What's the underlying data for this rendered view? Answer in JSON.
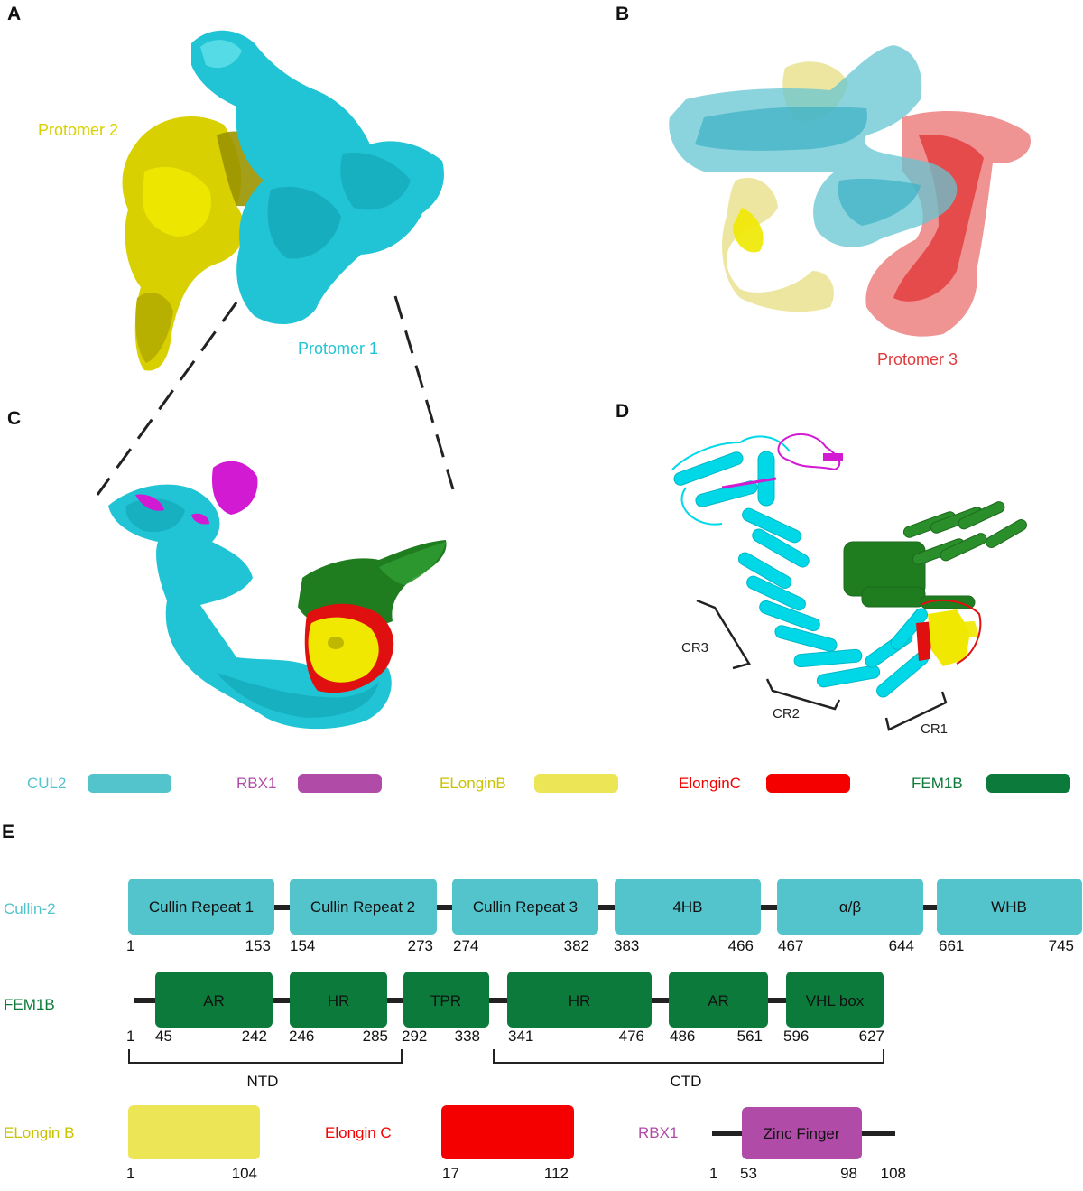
{
  "panels": {
    "a": {
      "letter": "A",
      "label_protomer2": "Protomer 2",
      "label_protomer1": "Protomer 1"
    },
    "b": {
      "letter": "B",
      "label_protomer3": "Protomer 3"
    },
    "c": {
      "letter": "C"
    },
    "d": {
      "letter": "D",
      "cr3": "CR3",
      "cr2": "CR2",
      "cr1": "CR1"
    },
    "e": {
      "letter": "E"
    }
  },
  "legend": [
    {
      "name": "CUL2",
      "color": "#53c3cc"
    },
    {
      "name": "RBX1",
      "color": "#b04ca8"
    },
    {
      "name": "ELonginB",
      "color": "#ece657"
    },
    {
      "name": "ElonginC",
      "color": "#f40000"
    },
    {
      "name": "FEM1B",
      "color": "#0b7a3a"
    }
  ],
  "colors": {
    "cul2": "#53c3cc",
    "cul2_density": "#20c4d4",
    "rbx1": "#d21ad2",
    "elonginb": "#f0e800",
    "elonginc": "#e01010",
    "fem1b": "#1f7d20",
    "protomer2": "#d8d000",
    "protomer3": "#e23a3a",
    "line": "#222222"
  },
  "domain_maps": {
    "cullin2": {
      "name": "Cullin-2",
      "domains": [
        {
          "label": "Cullin Repeat 1",
          "start": "1",
          "end": "153"
        },
        {
          "label": "Cullin Repeat 2",
          "start": "154",
          "end": "273"
        },
        {
          "label": "Cullin Repeat  3",
          "start": "274",
          "end": "382"
        },
        {
          "label": "4HB",
          "start": "383",
          "end": "466"
        },
        {
          "label": "α/β",
          "start": "467",
          "end": "644"
        },
        {
          "label": "WHB",
          "start": "661",
          "end": "745"
        }
      ]
    },
    "fem1b": {
      "name": "FEM1B",
      "start_label": "1",
      "domains": [
        {
          "label": "AR",
          "start": "45",
          "end": "242"
        },
        {
          "label": "HR",
          "start": "246",
          "end": "285"
        },
        {
          "label": "TPR",
          "start": "292",
          "end": "338"
        },
        {
          "label": "HR",
          "start": "341",
          "end": "476"
        },
        {
          "label": "AR",
          "start": "486",
          "end": "561"
        },
        {
          "label": "VHL box",
          "start": "596",
          "end": "627"
        }
      ],
      "ntd": "NTD",
      "ctd": "CTD"
    },
    "elonginb": {
      "name": "ELongin B",
      "start": "1",
      "end": "104"
    },
    "elonginc": {
      "name": "Elongin C",
      "start": "17",
      "end": "112"
    },
    "rbx1": {
      "name": "RBX1",
      "domain": "Zinc Finger",
      "n_term": "1",
      "start": "53",
      "end": "98",
      "c_term": "108"
    }
  }
}
